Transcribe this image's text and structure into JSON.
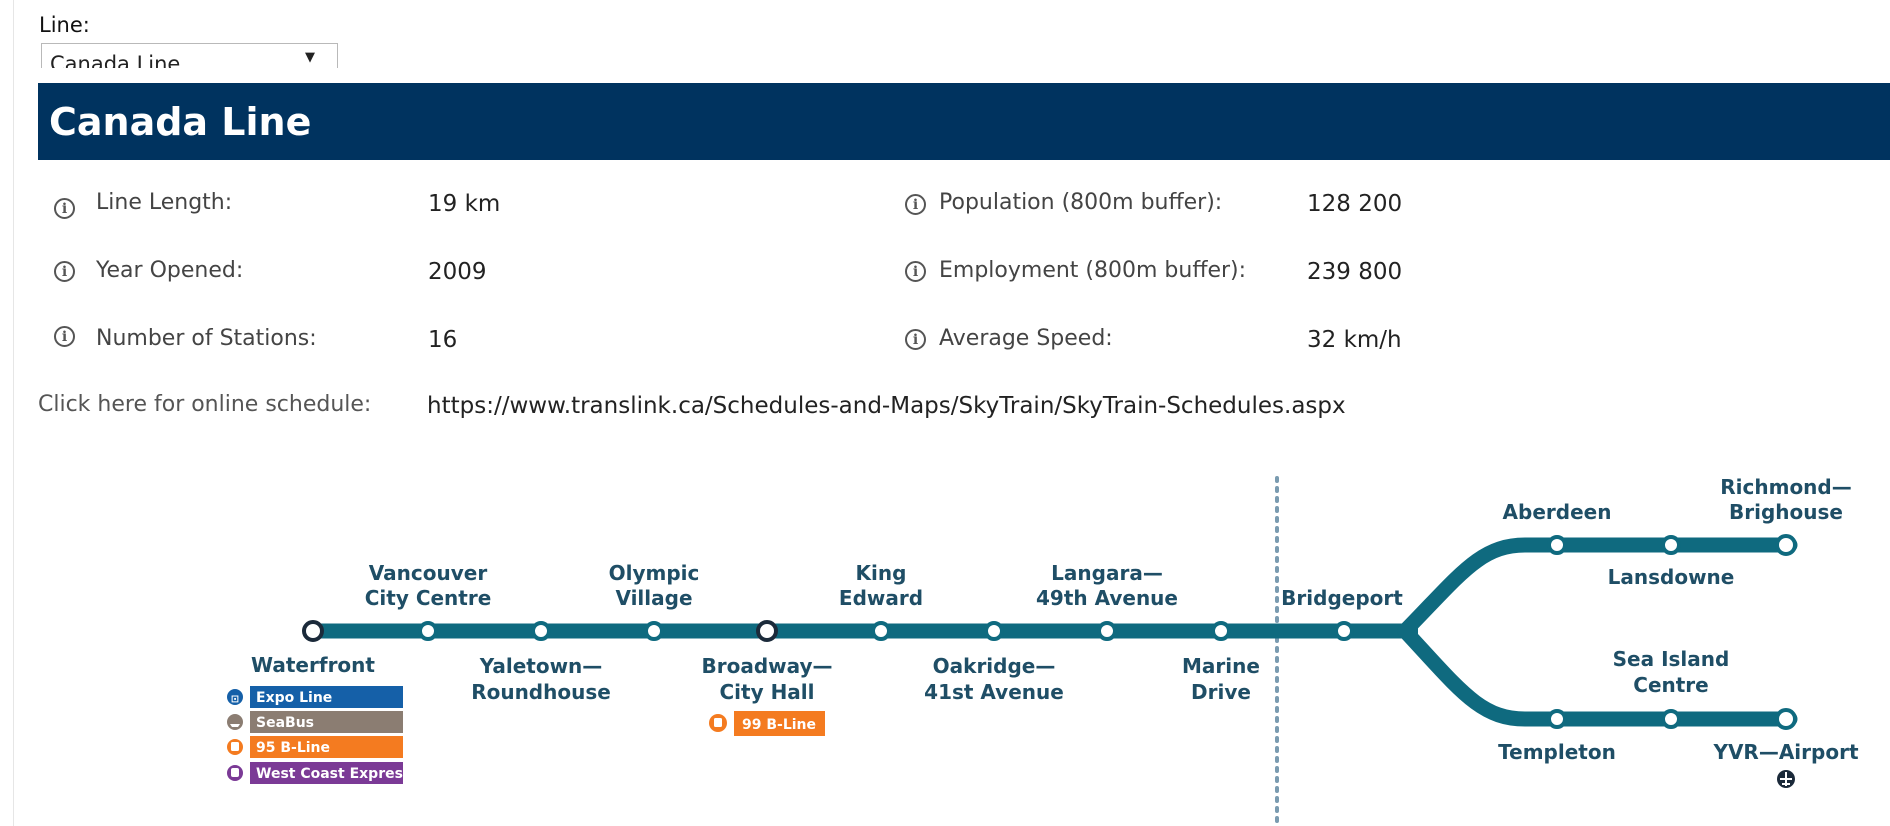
{
  "filter": {
    "label": "Line:",
    "selected": "Canada Line"
  },
  "title": "Canada Line",
  "stats_left": [
    {
      "label": "Line Length:",
      "value": "19 km"
    },
    {
      "label": "Year Opened:",
      "value": "2009"
    },
    {
      "label": "Number of Stations:",
      "value": "16"
    }
  ],
  "stats_right": [
    {
      "label": "Population (800m buffer):",
      "value": "128 200"
    },
    {
      "label": "Employment (800m buffer):",
      "value": "239 800"
    },
    {
      "label": "Average Speed:",
      "value": "32 km/h"
    }
  ],
  "schedule": {
    "label": "Click here for online schedule:",
    "url": "https://www.translink.ca/Schedules-and-Maps/SkyTrain/SkyTrain-Schedules.aspx"
  },
  "map": {
    "line_color": "#0f6a7f",
    "stations": {
      "waterfront": "Waterfront",
      "vancouver_city_centre": [
        "Vancouver",
        "City Centre"
      ],
      "yaletown": [
        "Yaletown—",
        "Roundhouse"
      ],
      "olympic_village": [
        "Olympic",
        "Village"
      ],
      "broadway": [
        "Broadway—",
        "City Hall"
      ],
      "king_edward": [
        "King",
        "Edward"
      ],
      "oakridge": [
        "Oakridge—",
        "41st Avenue"
      ],
      "langara": [
        "Langara—",
        "49th Avenue"
      ],
      "marine_drive": [
        "Marine",
        "Drive"
      ],
      "bridgeport": "Bridgeport",
      "aberdeen": "Aberdeen",
      "lansdowne": "Lansdowne",
      "richmond_brighouse": [
        "Richmond—",
        "Brighouse"
      ],
      "templeton": "Templeton",
      "sea_island_centre": [
        "Sea Island",
        "Centre"
      ],
      "yvr_airport": "YVR—Airport"
    },
    "waterfront_connections": [
      {
        "label": "Expo Line",
        "color": "#1560a8",
        "icon": "skytrain-icon"
      },
      {
        "label": "SeaBus",
        "color": "#8b7d72",
        "icon": "seabus-icon"
      },
      {
        "label": "95 B-Line",
        "color": "#f47b20",
        "icon": "bus-icon"
      },
      {
        "label": "West Coast Express",
        "color": "#7b3a96",
        "icon": "train-icon"
      }
    ],
    "broadway_connection": {
      "label": "99 B-Line",
      "color": "#f47b20",
      "icon": "bus-icon"
    }
  }
}
